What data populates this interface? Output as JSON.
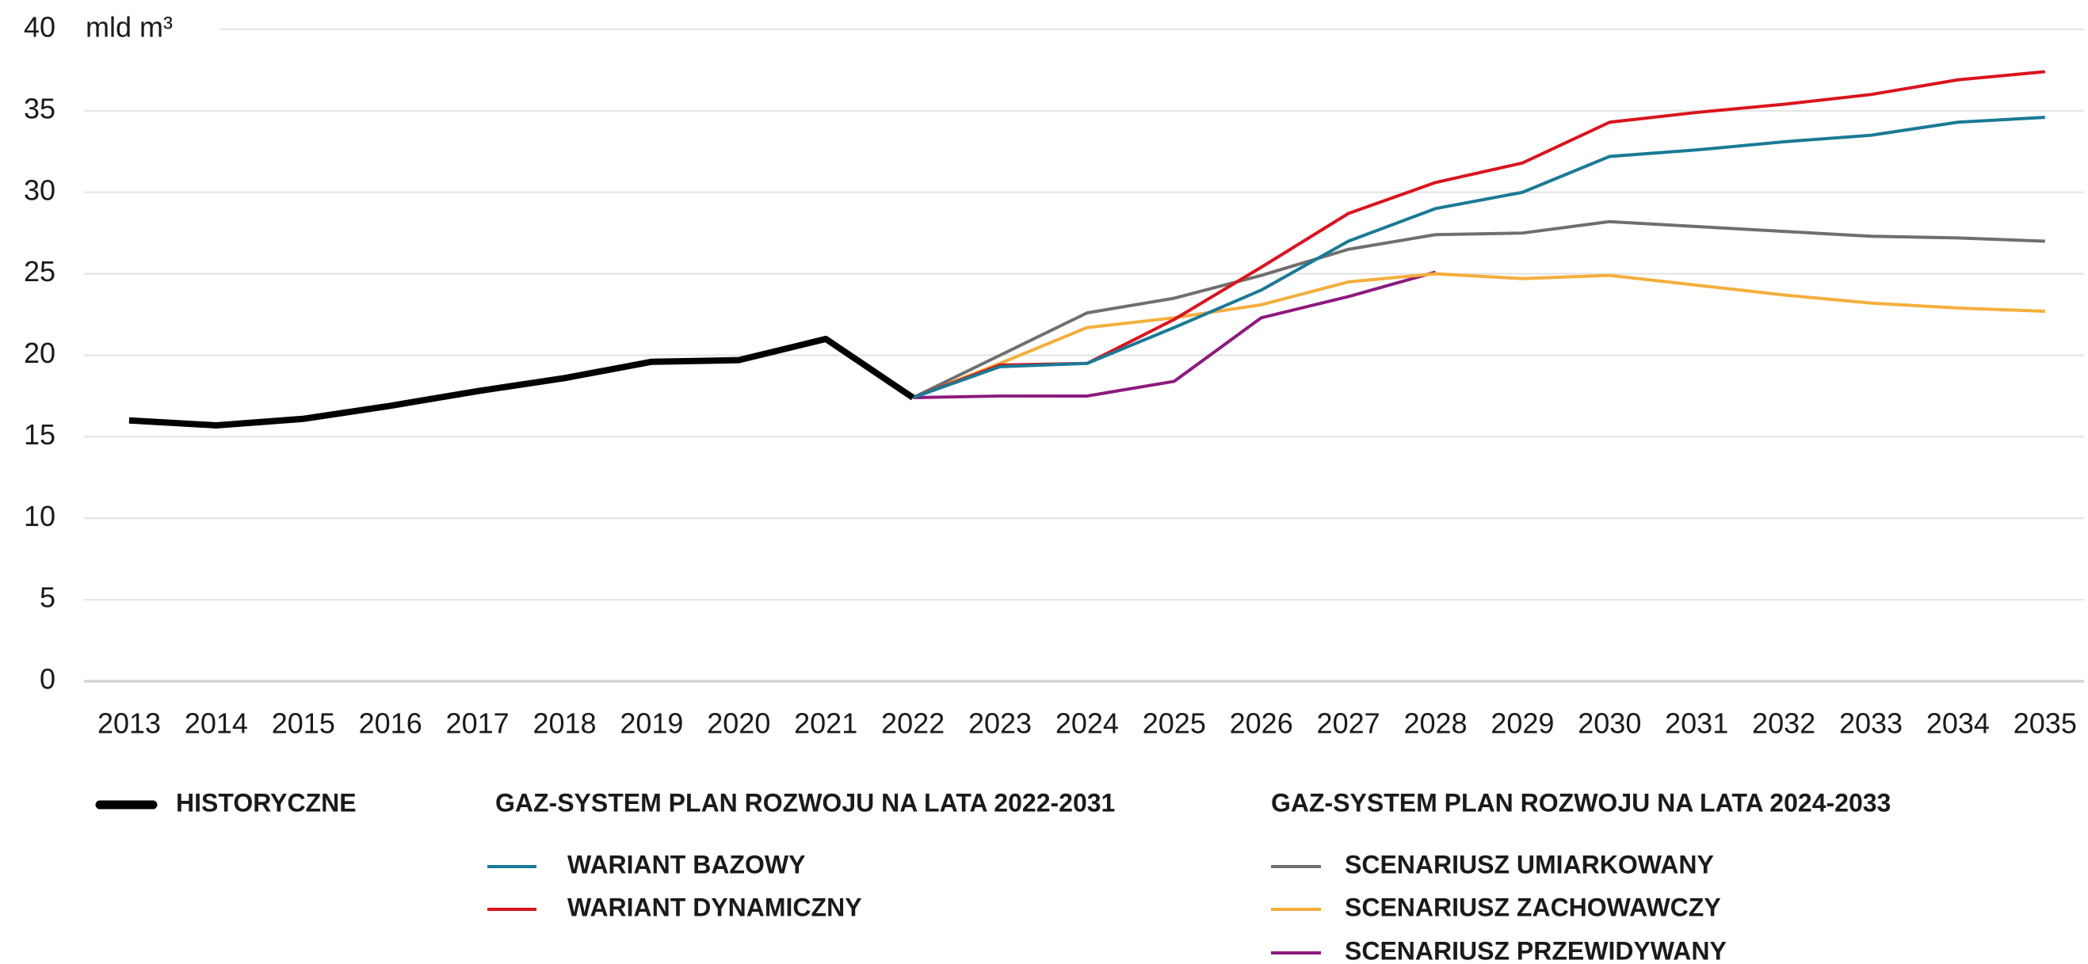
{
  "chart_data": {
    "type": "line",
    "y_unit_label": "mld m³",
    "categories": [
      "2013",
      "2014",
      "2015",
      "2016",
      "2017",
      "2018",
      "2019",
      "2020",
      "2021",
      "2022",
      "2023",
      "2024",
      "2025",
      "2026",
      "2027",
      "2028",
      "2029",
      "2030",
      "2031",
      "2032",
      "2033",
      "2034",
      "2035"
    ],
    "ylim": [
      0,
      40
    ],
    "yticks": [
      0,
      5,
      10,
      15,
      20,
      25,
      30,
      35,
      40
    ],
    "grid": true,
    "legend_headings": [
      "GAZ-SYSTEM PLAN ROZWOJU NA LATA 2022-2031",
      "GAZ-SYSTEM PLAN ROZWOJU NA LATA 2024-2033"
    ],
    "series": [
      {
        "name": "HISTORYCZNE",
        "color": "#000000",
        "values": [
          16.0,
          15.7,
          16.1,
          16.9,
          17.8,
          18.6,
          19.6,
          19.7,
          21.0,
          17.4,
          null,
          null,
          null,
          null,
          null,
          null,
          null,
          null,
          null,
          null,
          null,
          null,
          null
        ]
      },
      {
        "name": "WARIANT BAZOWY",
        "color": "#1a7a96",
        "values": [
          null,
          null,
          null,
          null,
          null,
          null,
          null,
          null,
          null,
          17.4,
          19.3,
          19.5,
          21.7,
          24.0,
          27.0,
          29.0,
          30.0,
          32.2,
          32.6,
          33.1,
          33.5,
          34.3,
          34.6
        ]
      },
      {
        "name": "WARIANT DYNAMICZNY",
        "color": "#d9141e",
        "values": [
          null,
          null,
          null,
          null,
          null,
          null,
          null,
          null,
          null,
          17.4,
          19.4,
          19.5,
          22.2,
          25.4,
          28.7,
          30.6,
          31.8,
          34.3,
          34.9,
          35.4,
          36.0,
          36.9,
          37.4
        ]
      },
      {
        "name": "SCENARIUSZ UMIARKOWANY",
        "color": "#6f6f6f",
        "values": [
          null,
          null,
          null,
          null,
          null,
          null,
          null,
          null,
          null,
          17.4,
          20.0,
          22.6,
          23.5,
          24.9,
          26.5,
          27.4,
          27.5,
          28.2,
          27.9,
          27.6,
          27.3,
          27.2,
          27.0
        ]
      },
      {
        "name": "SCENARIUSZ ZACHOWAWCZY",
        "color": "#f5ae3c",
        "values": [
          null,
          null,
          null,
          null,
          null,
          null,
          null,
          null,
          null,
          17.4,
          19.5,
          21.7,
          22.3,
          23.1,
          24.5,
          25.0,
          24.7,
          24.9,
          24.3,
          23.7,
          23.2,
          22.9,
          22.7
        ]
      },
      {
        "name": "SCENARIUSZ PRZEWIDYWANY",
        "color": "#8c1a7e",
        "values": [
          null,
          null,
          null,
          null,
          null,
          null,
          null,
          null,
          null,
          17.4,
          17.5,
          17.5,
          18.4,
          22.3,
          23.6,
          25.1,
          null,
          null,
          null,
          null,
          null,
          null,
          null
        ]
      }
    ]
  }
}
